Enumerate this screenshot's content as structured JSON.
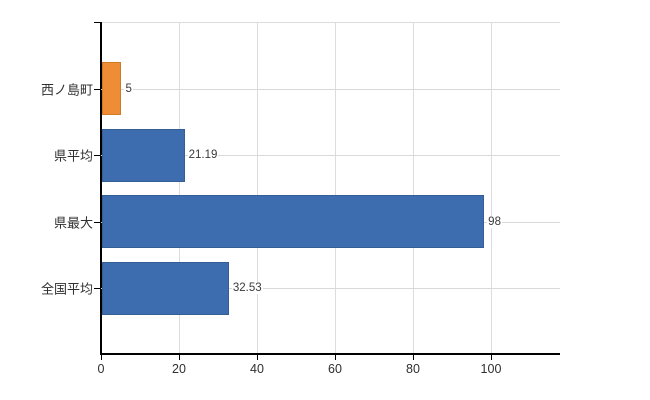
{
  "chart_data": {
    "type": "bar",
    "orientation": "horizontal",
    "title": "",
    "xlabel": "",
    "ylabel": "",
    "categories": [
      "西ノ島町",
      "県平均",
      "県最大",
      "全国平均"
    ],
    "values": [
      5,
      21.19,
      98,
      32.53
    ],
    "value_labels": [
      "5",
      "21.19",
      "98",
      "32.53"
    ],
    "x_ticks": [
      0,
      20,
      40,
      60,
      80,
      100
    ],
    "x_tick_labels": [
      "0",
      "20",
      "40",
      "60",
      "80",
      "100"
    ],
    "xlim": [
      0,
      117.7
    ],
    "grid": true,
    "legend": false,
    "bar_fill_colors": [
      "#EE8D35",
      "#3E6DAF",
      "#3E6DAF",
      "#3E6DAF"
    ],
    "bar_border_colors": [
      "#CE7A26",
      "#335E96",
      "#335E96",
      "#335E96"
    ]
  },
  "colors": {
    "highlight_orange": "#EE8D35",
    "series_blue": "#3E6DAF",
    "gridline": "#dcdcdc",
    "axis": "#000000",
    "label_text": "#2f2f2f"
  }
}
